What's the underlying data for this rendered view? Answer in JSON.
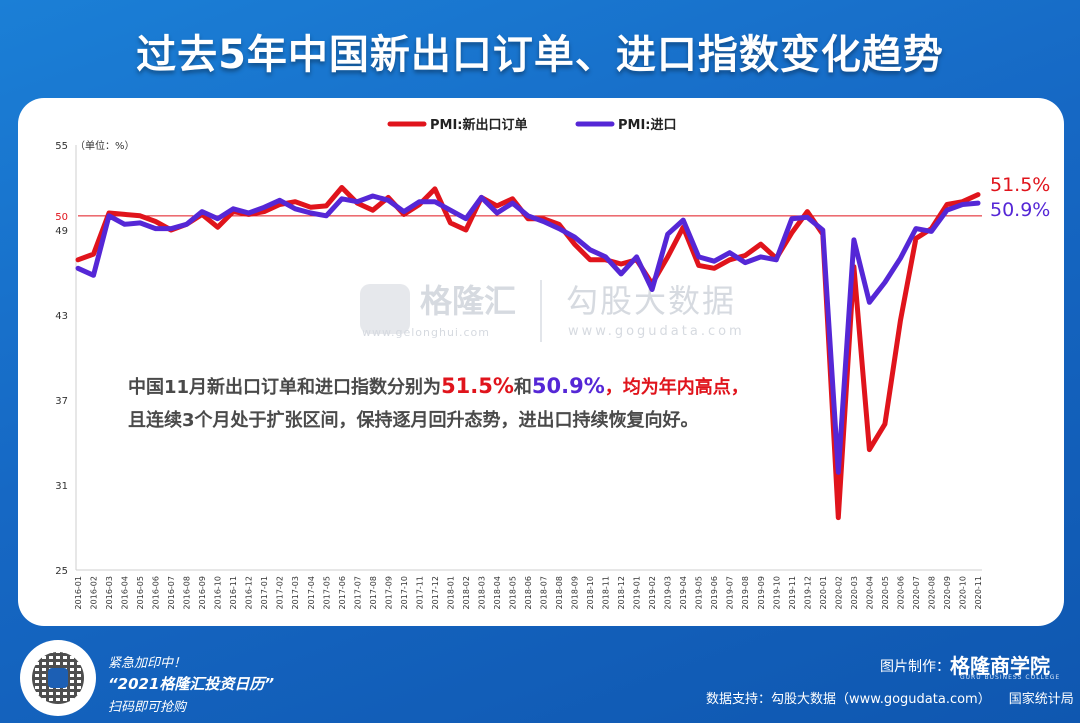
{
  "title": "过去5年中国新出口订单、进口指数变化趋势",
  "chart_data": {
    "type": "line",
    "unit_label": "（单位：%）",
    "yticks": [
      25,
      31,
      37,
      43,
      49,
      50,
      55
    ],
    "ylim": [
      25,
      55
    ],
    "reference_line": 50,
    "legend_position": "top-center",
    "x": [
      "2016-01",
      "2016-02",
      "2016-03",
      "2016-04",
      "2016-05",
      "2016-06",
      "2016-07",
      "2016-08",
      "2016-09",
      "2016-10",
      "2016-11",
      "2016-12",
      "2017-01",
      "2017-02",
      "2017-03",
      "2017-04",
      "2017-05",
      "2017-06",
      "2017-07",
      "2017-08",
      "2017-09",
      "2017-10",
      "2017-11",
      "2017-12",
      "2018-01",
      "2018-02",
      "2018-03",
      "2018-04",
      "2018-05",
      "2018-06",
      "2018-07",
      "2018-08",
      "2018-09",
      "2018-10",
      "2018-11",
      "2018-12",
      "2019-01",
      "2019-02",
      "2019-03",
      "2019-04",
      "2019-05",
      "2019-06",
      "2019-07",
      "2019-08",
      "2019-09",
      "2019-10",
      "2019-11",
      "2019-12",
      "2020-01",
      "2020-02",
      "2020-03",
      "2020-04",
      "2020-05",
      "2020-06",
      "2020-07",
      "2020-08",
      "2020-09",
      "2020-10",
      "2020-11"
    ],
    "series": [
      {
        "name": "PMI:新出口订单",
        "color": "#e0141c",
        "values": [
          46.9,
          47.3,
          50.2,
          50.1,
          50.0,
          49.6,
          49.0,
          49.4,
          50.1,
          49.2,
          50.3,
          50.1,
          50.3,
          50.8,
          51.0,
          50.6,
          50.7,
          52.0,
          50.9,
          50.4,
          51.3,
          50.1,
          50.8,
          51.9,
          49.5,
          49.0,
          51.3,
          50.7,
          51.2,
          49.8,
          49.8,
          49.4,
          48.0,
          46.9,
          46.9,
          46.6,
          46.9,
          45.2,
          47.1,
          49.2,
          46.5,
          46.3,
          46.9,
          47.2,
          48.0,
          47.0,
          48.8,
          50.3,
          48.7,
          28.7,
          46.4,
          33.5,
          35.3,
          42.6,
          48.4,
          49.1,
          50.8,
          51.0,
          51.5
        ]
      },
      {
        "name": "PMI:进口",
        "color": "#5527d6",
        "values": [
          46.3,
          45.8,
          50.0,
          49.4,
          49.5,
          49.1,
          49.1,
          49.4,
          50.3,
          49.8,
          50.5,
          50.2,
          50.6,
          51.1,
          50.5,
          50.2,
          50.0,
          51.2,
          51.0,
          51.4,
          51.1,
          50.3,
          51.0,
          51.0,
          50.4,
          49.8,
          51.3,
          50.2,
          50.9,
          50.0,
          49.6,
          49.1,
          48.5,
          47.6,
          47.1,
          45.9,
          47.1,
          44.8,
          48.7,
          49.7,
          47.1,
          46.8,
          47.4,
          46.7,
          47.1,
          46.9,
          49.8,
          49.9,
          49.0,
          31.9,
          48.3,
          43.9,
          45.3,
          47.0,
          49.1,
          48.9,
          50.4,
          50.8,
          50.9
        ]
      }
    ],
    "end_labels": [
      "51.5%",
      "50.9%"
    ]
  },
  "watermark": {
    "brand1": "格隆汇",
    "site1": "www.gelonghui.com",
    "brand2": "勾股大数据",
    "site2": "www.gogudata.com"
  },
  "annotation": {
    "line1_prefix": "中国11月新出口订单和进口指数分别为",
    "value1": "51.5%",
    "connector": "和",
    "value2": "50.9%",
    "line1_suffix": "，均为年内高点，",
    "line2": "且连续3个月处于扩张区间，保持逐月回升态势，进出口持续恢复向好。"
  },
  "footer": {
    "promo_line1": "紧急加印中！",
    "promo_line2": "“2021格隆汇投资日历”",
    "promo_line3": "扫码即可抢购",
    "maker_label": "图片制作：",
    "maker_brand": "格隆商学院",
    "maker_sub": "GURU BUSINESS COLLEGE",
    "source": "数据支持：勾股大数据（www.gogudata.com）",
    "agency": "国家统计局"
  }
}
